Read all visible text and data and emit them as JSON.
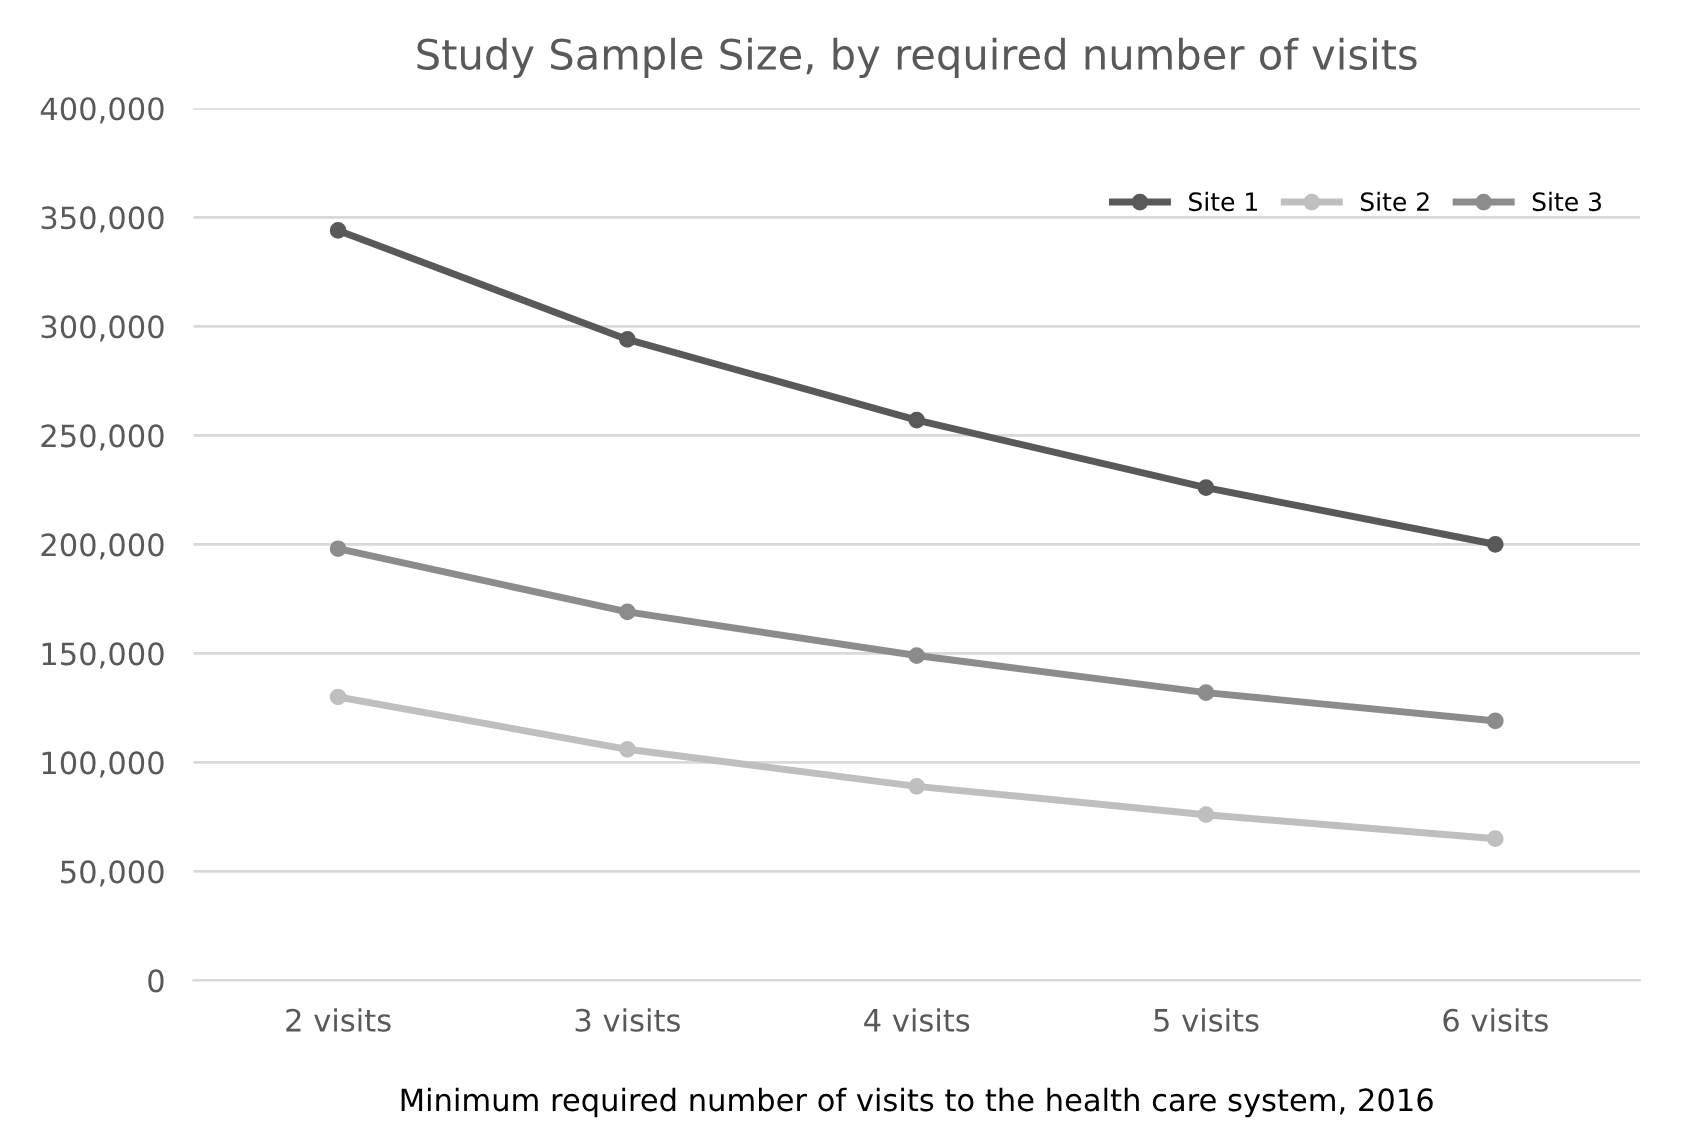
{
  "chart_data": {
    "type": "line",
    "title": "Study Sample Size, by required number of visits",
    "xlabel": "Minimum required number of visits to the health care system, 2016",
    "categories": [
      "2 visits",
      "3 visits",
      "4 visits",
      "5 visits",
      "6 visits"
    ],
    "series": [
      {
        "name": "Site 1",
        "color": "#595959",
        "values": [
          344000,
          294000,
          257000,
          226000,
          200000
        ]
      },
      {
        "name": "Site 2",
        "color": "#bfbfbf",
        "values": [
          130000,
          106000,
          89000,
          76000,
          65000
        ]
      },
      {
        "name": "Site 3",
        "color": "#8c8c8c",
        "values": [
          198000,
          169000,
          149000,
          132000,
          119000
        ]
      }
    ],
    "ylim": [
      0,
      400000
    ],
    "yticks": [
      {
        "value": 0,
        "label": "0"
      },
      {
        "value": 50000,
        "label": "50,000"
      },
      {
        "value": 100000,
        "label": "100,000"
      },
      {
        "value": 150000,
        "label": "150,000"
      },
      {
        "value": 200000,
        "label": "200,000"
      },
      {
        "value": 250000,
        "label": "250,000"
      },
      {
        "value": 300000,
        "label": "300,000"
      },
      {
        "value": 350000,
        "label": "350,000"
      },
      {
        "value": 400000,
        "label": "400,000"
      }
    ],
    "grid": "y",
    "legend": "top right",
    "marker": "circle",
    "line_style": "solid"
  }
}
